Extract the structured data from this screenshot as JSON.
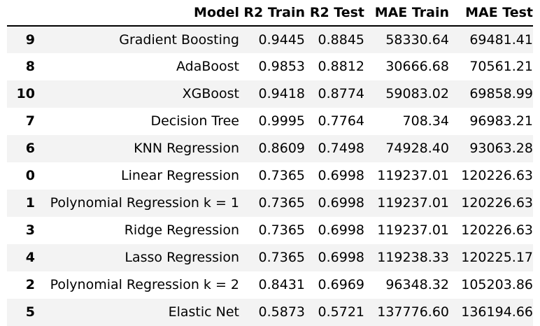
{
  "table": {
    "columns": [
      "",
      "Model",
      "R2 Train",
      "R2 Test",
      "MAE Train",
      "MAE Test"
    ],
    "rows": [
      {
        "index": "9",
        "model": "Gradient Boosting",
        "r2_train": "0.9445",
        "r2_test": "0.8845",
        "mae_train": "58330.64",
        "mae_test": "69481.41"
      },
      {
        "index": "8",
        "model": "AdaBoost",
        "r2_train": "0.9853",
        "r2_test": "0.8812",
        "mae_train": "30666.68",
        "mae_test": "70561.21"
      },
      {
        "index": "10",
        "model": "XGBoost",
        "r2_train": "0.9418",
        "r2_test": "0.8774",
        "mae_train": "59083.02",
        "mae_test": "69858.99"
      },
      {
        "index": "7",
        "model": "Decision Tree",
        "r2_train": "0.9995",
        "r2_test": "0.7764",
        "mae_train": "708.34",
        "mae_test": "96983.21"
      },
      {
        "index": "6",
        "model": "KNN Regression",
        "r2_train": "0.8609",
        "r2_test": "0.7498",
        "mae_train": "74928.40",
        "mae_test": "93063.28"
      },
      {
        "index": "0",
        "model": "Linear Regression",
        "r2_train": "0.7365",
        "r2_test": "0.6998",
        "mae_train": "119237.01",
        "mae_test": "120226.63"
      },
      {
        "index": "1",
        "model": "Polynomial Regression k = 1",
        "r2_train": "0.7365",
        "r2_test": "0.6998",
        "mae_train": "119237.01",
        "mae_test": "120226.63"
      },
      {
        "index": "3",
        "model": "Ridge Regression",
        "r2_train": "0.7365",
        "r2_test": "0.6998",
        "mae_train": "119237.01",
        "mae_test": "120226.63"
      },
      {
        "index": "4",
        "model": "Lasso Regression",
        "r2_train": "0.7365",
        "r2_test": "0.6998",
        "mae_train": "119238.33",
        "mae_test": "120225.17"
      },
      {
        "index": "2",
        "model": "Polynomial Regression k = 2",
        "r2_train": "0.8431",
        "r2_test": "0.6969",
        "mae_train": "96348.32",
        "mae_test": "105203.86"
      },
      {
        "index": "5",
        "model": "Elastic Net",
        "r2_train": "0.5873",
        "r2_test": "0.5721",
        "mae_train": "137776.60",
        "mae_test": "136194.66"
      }
    ]
  },
  "colors": {
    "stripe": "#f3f3f3",
    "background": "#ffffff",
    "text": "#000000",
    "header_rule": "#000000"
  }
}
